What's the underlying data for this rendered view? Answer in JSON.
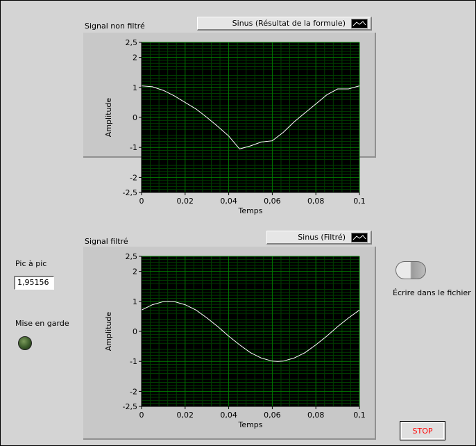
{
  "graph1": {
    "title": "Signal non filtré",
    "legend": "Sinus (Résultat de la formule)",
    "ylabel": "Amplitude",
    "xlabel": "Temps"
  },
  "graph2": {
    "title": "Signal filtré",
    "legend": "Sinus (Filtré)",
    "ylabel": "Amplitude",
    "xlabel": "Temps"
  },
  "controls": {
    "peak_label": "Pic à pic",
    "peak_value": "1,95156",
    "warning_label": "Mise en garde",
    "write_label": "Écrire dans le fichier",
    "stop_label": "STOP"
  },
  "colors": {
    "plot_bg": "#000000",
    "grid_major": "#007a00",
    "grid_minor": "#003d00",
    "trace": "#ffffff",
    "stop_text": "#ff0000"
  },
  "chart_data": [
    {
      "type": "line",
      "title": "Signal non filtré",
      "xlabel": "Temps",
      "ylabel": "Amplitude",
      "xlim": [
        0,
        0.1
      ],
      "ylim": [
        -2.5,
        2.5
      ],
      "xticks": [
        "0",
        "0,02",
        "0,04",
        "0,06",
        "0,08",
        "0,1"
      ],
      "yticks": [
        "2,5",
        "2",
        "1",
        "0",
        "-1",
        "-2",
        "-2,5"
      ],
      "grid": true,
      "series": [
        {
          "name": "Sinus (Résultat de la formule)",
          "x": [
            0,
            0.005,
            0.01,
            0.015,
            0.02,
            0.025,
            0.03,
            0.035,
            0.04,
            0.045,
            0.05,
            0.055,
            0.06,
            0.065,
            0.07,
            0.075,
            0.08,
            0.085,
            0.09,
            0.095,
            0.1
          ],
          "y": [
            1.05,
            1.02,
            0.9,
            0.72,
            0.5,
            0.28,
            0.0,
            -0.3,
            -0.62,
            -1.05,
            -0.95,
            -0.82,
            -0.78,
            -0.5,
            -0.15,
            0.15,
            0.45,
            0.75,
            0.95,
            0.95,
            1.05
          ]
        }
      ]
    },
    {
      "type": "line",
      "title": "Signal filtré",
      "xlabel": "Temps",
      "ylabel": "Amplitude",
      "xlim": [
        0,
        0.1
      ],
      "ylim": [
        -2.5,
        2.5
      ],
      "xticks": [
        "0",
        "0,02",
        "0,04",
        "0,06",
        "0,08",
        "0,1"
      ],
      "yticks": [
        "2,5",
        "2",
        "1",
        "0",
        "-1",
        "-2",
        "-2,5"
      ],
      "grid": true,
      "series": [
        {
          "name": "Sinus (Filtré)",
          "x": [
            0,
            0.005,
            0.01,
            0.0125,
            0.015,
            0.02,
            0.025,
            0.03,
            0.035,
            0.04,
            0.045,
            0.05,
            0.055,
            0.06,
            0.0625,
            0.065,
            0.07,
            0.075,
            0.08,
            0.085,
            0.09,
            0.095,
            0.1
          ],
          "y": [
            0.71,
            0.89,
            0.99,
            1.0,
            0.99,
            0.89,
            0.71,
            0.45,
            0.16,
            -0.16,
            -0.45,
            -0.71,
            -0.89,
            -0.99,
            -1.0,
            -0.99,
            -0.89,
            -0.71,
            -0.45,
            -0.16,
            0.16,
            0.45,
            0.71
          ]
        }
      ]
    }
  ]
}
